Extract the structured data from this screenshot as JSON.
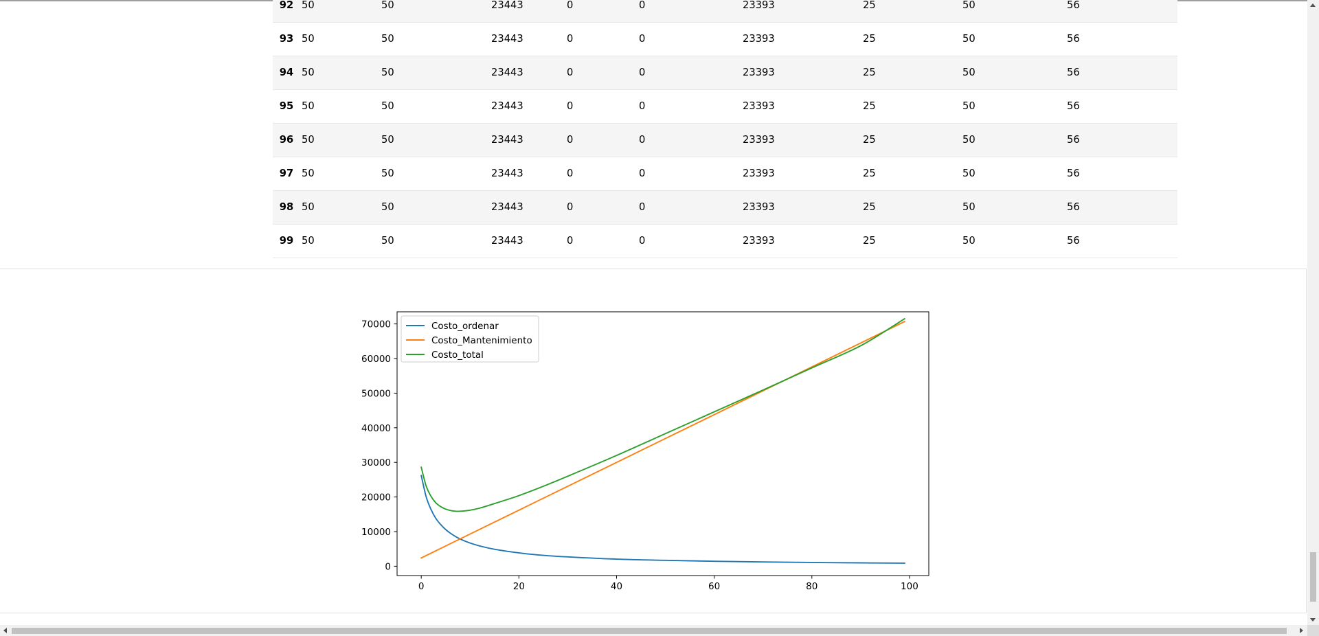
{
  "table": {
    "rows": [
      {
        "index": "92",
        "cells": [
          "50",
          "50",
          "23443",
          "0",
          "0",
          "23393",
          "25",
          "50",
          "56"
        ]
      },
      {
        "index": "93",
        "cells": [
          "50",
          "50",
          "23443",
          "0",
          "0",
          "23393",
          "25",
          "50",
          "56"
        ]
      },
      {
        "index": "94",
        "cells": [
          "50",
          "50",
          "23443",
          "0",
          "0",
          "23393",
          "25",
          "50",
          "56"
        ]
      },
      {
        "index": "95",
        "cells": [
          "50",
          "50",
          "23443",
          "0",
          "0",
          "23393",
          "25",
          "50",
          "56"
        ]
      },
      {
        "index": "96",
        "cells": [
          "50",
          "50",
          "23443",
          "0",
          "0",
          "23393",
          "25",
          "50",
          "56"
        ]
      },
      {
        "index": "97",
        "cells": [
          "50",
          "50",
          "23443",
          "0",
          "0",
          "23393",
          "25",
          "50",
          "56"
        ]
      },
      {
        "index": "98",
        "cells": [
          "50",
          "50",
          "23443",
          "0",
          "0",
          "23393",
          "25",
          "50",
          "56"
        ]
      },
      {
        "index": "99",
        "cells": [
          "50",
          "50",
          "23443",
          "0",
          "0",
          "23393",
          "25",
          "50",
          "56"
        ]
      }
    ]
  },
  "chart_data": {
    "type": "line",
    "title": "",
    "xlabel": "",
    "ylabel": "",
    "xlim": [
      -4.95,
      103.95
    ],
    "ylim": [
      -2700,
      73500
    ],
    "xticks": [
      0,
      20,
      40,
      60,
      80,
      100
    ],
    "yticks": [
      0,
      10000,
      20000,
      30000,
      40000,
      50000,
      60000,
      70000
    ],
    "grid": false,
    "legend_position": "upper left",
    "series": [
      {
        "name": "Costo_ordenar",
        "color": "#1f77b4",
        "formula_note": "",
        "x": [
          0,
          1,
          2,
          3,
          4,
          5,
          6,
          7,
          8,
          10,
          12,
          15,
          20,
          25,
          30,
          40,
          50,
          60,
          70,
          80,
          90,
          99
        ],
        "values": [
          26200,
          20100,
          16400,
          13800,
          12000,
          10600,
          9500,
          8600,
          7850,
          6700,
          5850,
          4900,
          3850,
          3150,
          2700,
          2050,
          1700,
          1430,
          1230,
          1080,
          970,
          880
        ]
      },
      {
        "name": "Costo_Mantenimiento",
        "color": "#ff7f0e",
        "x": [
          0,
          99
        ],
        "values": [
          2400,
          70700
        ]
      },
      {
        "name": "Costo_total",
        "color": "#2ca02c",
        "x": [
          0,
          1,
          2,
          3,
          4,
          5,
          6,
          7,
          8,
          10,
          12,
          15,
          20,
          25,
          30,
          40,
          50,
          60,
          70,
          80,
          90,
          99
        ],
        "values": [
          28600,
          23200,
          20200,
          18300,
          17200,
          16500,
          16100,
          15900,
          15900,
          16200,
          16800,
          18100,
          20400,
          23100,
          26000,
          32000,
          38300,
          44600,
          50900,
          57300,
          63700,
          71500
        ]
      }
    ]
  }
}
